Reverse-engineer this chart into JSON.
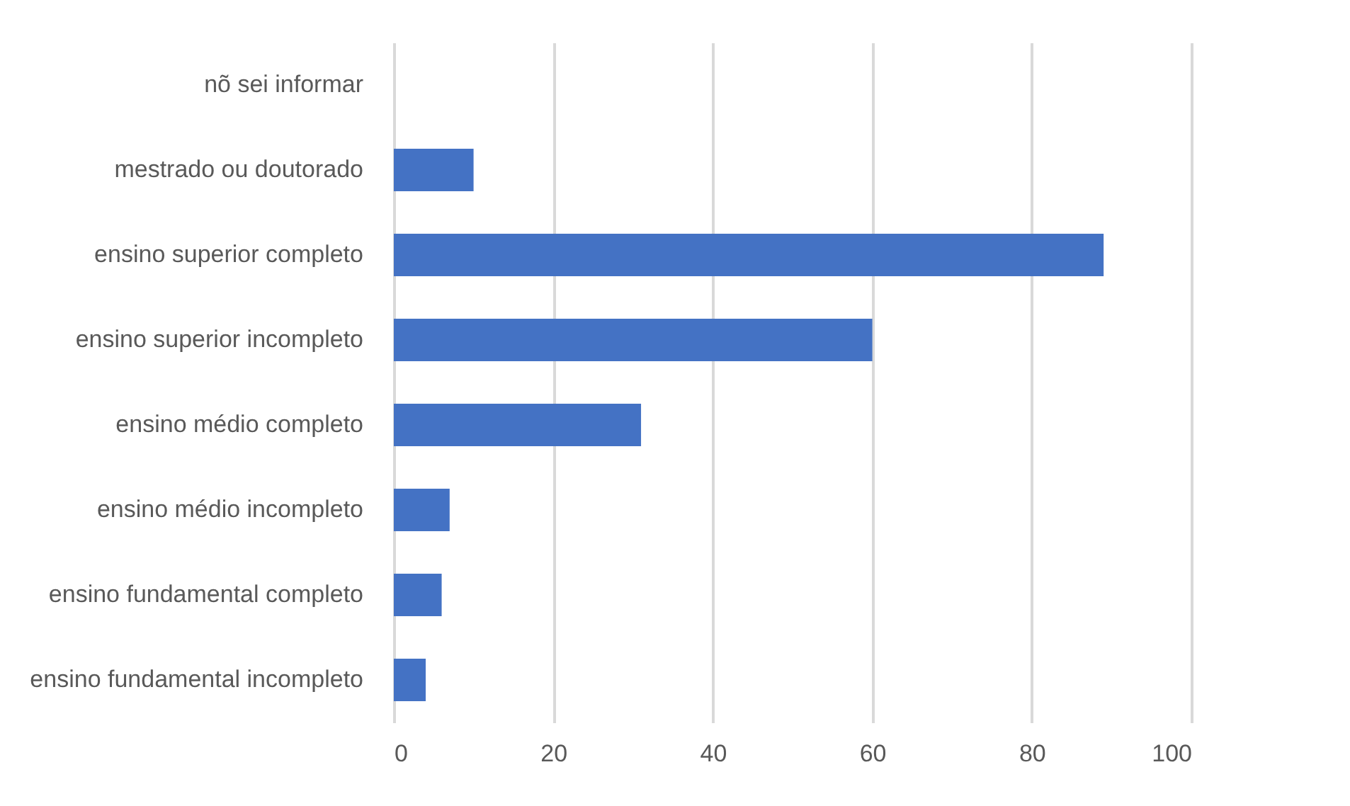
{
  "chart_data": {
    "type": "bar",
    "orientation": "horizontal",
    "categories": [
      "nõ sei informar",
      "mestrado ou doutorado",
      "ensino superior completo",
      "ensino superior incompleto",
      "ensino médio completo",
      "ensino médio incompleto",
      "ensino fundamental completo",
      "ensino fundamental incompleto"
    ],
    "values": [
      0,
      10,
      89,
      60,
      31,
      7,
      6,
      4
    ],
    "color": "#4472c4",
    "xlim": [
      0,
      100
    ],
    "xticks": [
      0,
      20,
      40,
      60,
      80,
      100
    ],
    "grid": "x"
  }
}
